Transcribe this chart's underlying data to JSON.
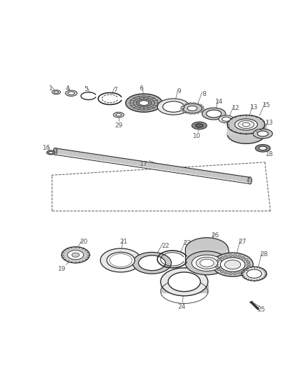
{
  "background_color": "#ffffff",
  "line_color": "#2a2a2a",
  "label_color": "#555555",
  "fig_width": 4.38,
  "fig_height": 5.33,
  "dpi": 100,
  "gray_light": "#e8e8e8",
  "gray_med": "#c8c8c8",
  "gray_dark": "#888888",
  "gray_fill": "#d0d0d0"
}
